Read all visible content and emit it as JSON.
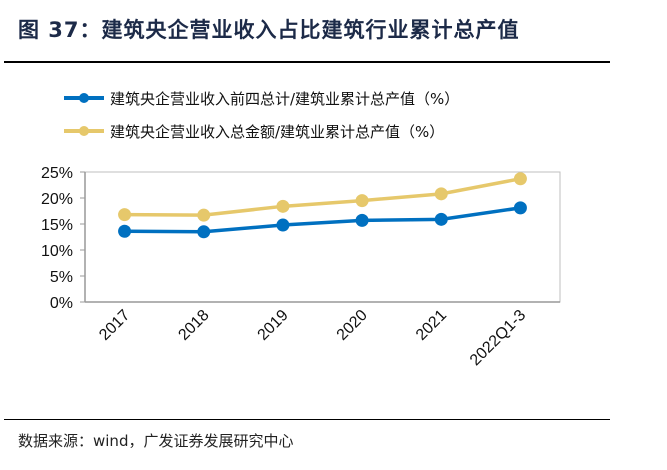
{
  "title": "图 37：建筑央企营业收入占比建筑行业累计总产值",
  "source": "数据来源：wind，广发证券发展研究中心",
  "chart_data": {
    "type": "line",
    "categories": [
      "2017",
      "2018",
      "2019",
      "2020",
      "2021",
      "2022Q1-3"
    ],
    "series": [
      {
        "name": "建筑央企营业收入前四总计/建筑业累计总产值（%）",
        "color": "#0070c0",
        "values": [
          13.6,
          13.5,
          14.8,
          15.7,
          15.9,
          18.1
        ]
      },
      {
        "name": "建筑央企营业收入总金额/建筑业累计总产值（%）",
        "color": "#e6c86b",
        "values": [
          16.8,
          16.7,
          18.4,
          19.5,
          20.8,
          23.7
        ]
      }
    ],
    "ylim": [
      0,
      25
    ],
    "yticks": [
      "0%",
      "5%",
      "10%",
      "15%",
      "20%",
      "25%"
    ],
    "legend": "top-left",
    "xlabel": "",
    "ylabel": ""
  }
}
